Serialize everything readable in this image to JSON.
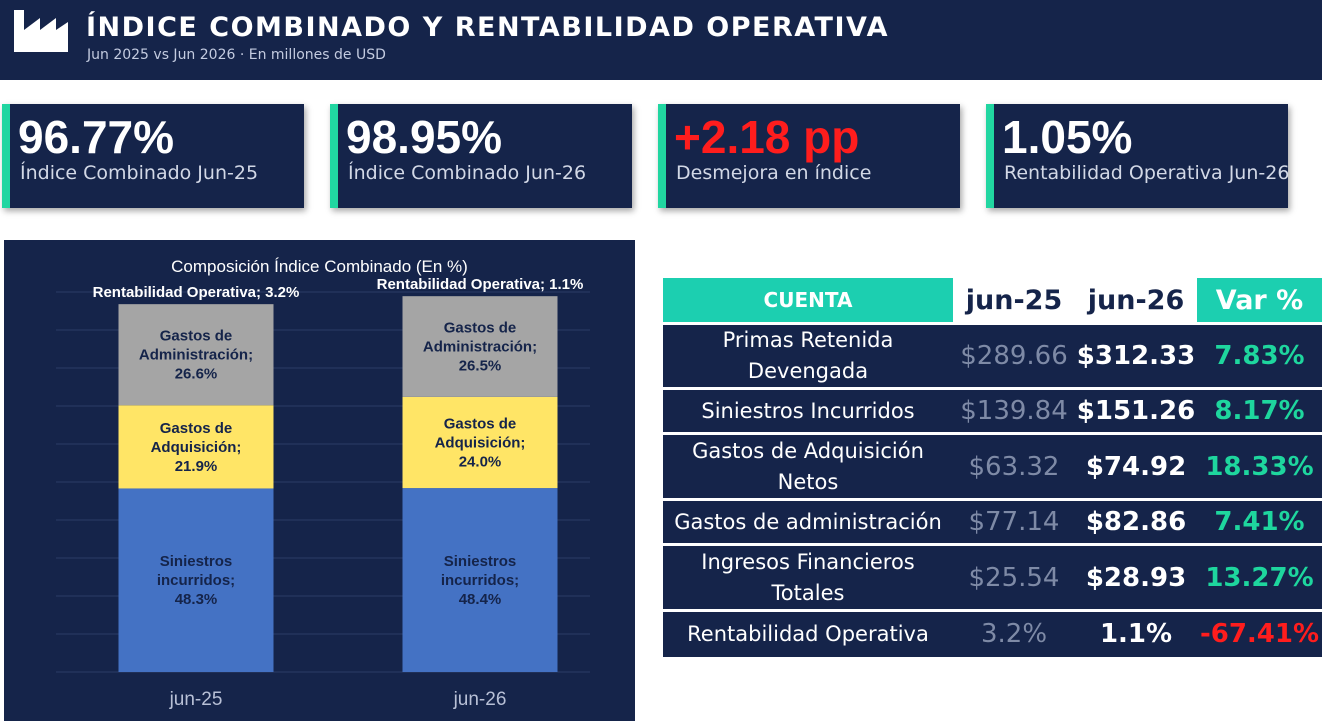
{
  "header": {
    "title": "ÍNDICE COMBINADO Y RENTABILIDAD OPERATIVA",
    "subtitle": "Jun 2025 vs Jun 2026 · En millones de USD"
  },
  "kpis": [
    {
      "value": "96.77%",
      "label": "Índice Combinado Jun-25"
    },
    {
      "value": "98.95%",
      "label": "Índice Combinado Jun-26"
    },
    {
      "value": "+2.18 pp",
      "label": "Desmejora en índice"
    },
    {
      "value": "1.05%",
      "label": "Rentabilidad Operativa Jun-26"
    }
  ],
  "colors": {
    "navy": "#15244a",
    "accent": "#21d6a1",
    "teal_header": "#1ccfb0",
    "negative": "#ff1d1d",
    "siniestros": "#4472c4",
    "adquisicion": "#ffe566",
    "administracion": "#a5a5a5"
  },
  "chart_data": {
    "type": "bar",
    "stacked": true,
    "title": "Composición Índice Combinado (En %)",
    "categories": [
      "jun-25",
      "jun-26"
    ],
    "series": [
      {
        "name": "Siniestros incurridos",
        "values": [
          48.3,
          48.4
        ],
        "color": "#4472c4",
        "labels": [
          "Siniestros incurridos; 48.3%",
          "Siniestros incurridos; 48.4%"
        ]
      },
      {
        "name": "Gastos de Adquisición",
        "values": [
          21.9,
          24.0
        ],
        "color": "#ffe566",
        "labels": [
          "Gastos de Adquisición; 21.9%",
          "Gastos de Adquisición; 24.0%"
        ]
      },
      {
        "name": "Gastos de Administración",
        "values": [
          26.6,
          26.5
        ],
        "color": "#a5a5a5",
        "labels": [
          "Gastos de Administración; 26.6%",
          "Gastos de Administración; 26.5%"
        ]
      },
      {
        "name": "Rentabilidad Operativa",
        "values": [
          3.2,
          1.1
        ],
        "color": "#15244a",
        "labels": [
          "Rentabilidad Operativa; 3.2%",
          "Rentabilidad Operativa; 1.1%"
        ]
      }
    ],
    "ylim": [
      0,
      100
    ],
    "grid": true
  },
  "table": {
    "headers": [
      "CUENTA",
      "jun-25",
      "jun-26",
      "Var %"
    ],
    "rows": [
      {
        "cuenta": "Primas Retenida Devengada",
        "jun25": "$289.66",
        "jun26": "$312.33",
        "var": "7.83%",
        "negative": false
      },
      {
        "cuenta": "Siniestros Incurridos",
        "jun25": "$139.84",
        "jun26": "$151.26",
        "var": "8.17%",
        "negative": false
      },
      {
        "cuenta": "Gastos de Adquisición Netos",
        "jun25": "$63.32",
        "jun26": "$74.92",
        "var": "18.33%",
        "negative": false
      },
      {
        "cuenta": "Gastos de administración",
        "jun25": "$77.14",
        "jun26": "$82.86",
        "var": "7.41%",
        "negative": false
      },
      {
        "cuenta": "Ingresos Financieros Totales",
        "jun25": "$25.54",
        "jun26": "$28.93",
        "var": "13.27%",
        "negative": false
      },
      {
        "cuenta": "Rentabilidad Operativa",
        "jun25": "3.2%",
        "jun26": "1.1%",
        "var": "-67.41%",
        "negative": true
      }
    ]
  }
}
